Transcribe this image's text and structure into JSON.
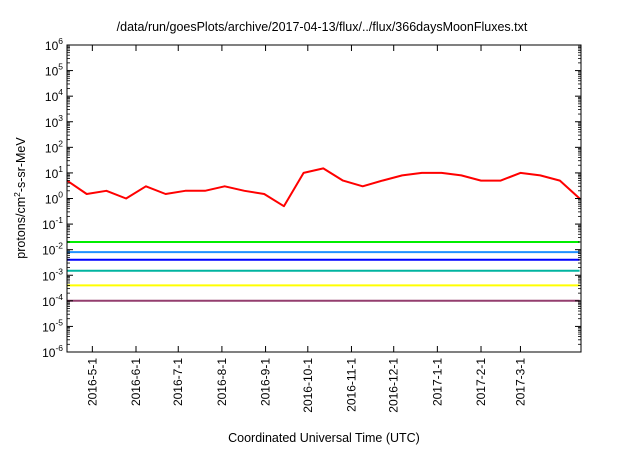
{
  "chart_data": {
    "type": "line",
    "title": "/data/run/goesPlots/archive/2017-04-13/flux/../flux/366daysMoonFluxes.txt",
    "xlabel": "Coordinated Universal Time (UTC)",
    "ylabel": "protons/cm²-s-sr-MeV",
    "ylabel_parts": {
      "before": "protons/cm",
      "sup": "2",
      "after": "-s-sr-MeV"
    },
    "yscale": "log",
    "ylim": [
      1e-06,
      1000000.0
    ],
    "y_ticks": [
      {
        "base": "10",
        "exp": "-6",
        "value": 1e-06
      },
      {
        "base": "10",
        "exp": "-5",
        "value": 1e-05
      },
      {
        "base": "10",
        "exp": "-4",
        "value": 0.0001
      },
      {
        "base": "10",
        "exp": "-3",
        "value": 0.001
      },
      {
        "base": "10",
        "exp": "-2",
        "value": 0.01
      },
      {
        "base": "10",
        "exp": "-1",
        "value": 0.1
      },
      {
        "base": "10",
        "exp": "0",
        "value": 1
      },
      {
        "base": "10",
        "exp": "1",
        "value": 10
      },
      {
        "base": "10",
        "exp": "2",
        "value": 100
      },
      {
        "base": "10",
        "exp": "3",
        "value": 1000
      },
      {
        "base": "10",
        "exp": "4",
        "value": 10000
      },
      {
        "base": "10",
        "exp": "5",
        "value": 100000
      },
      {
        "base": "10",
        "exp": "6",
        "value": 1000000
      }
    ],
    "xlim": [
      "2016-04-13",
      "2017-04-13"
    ],
    "x_ticks": [
      {
        "label": "2016-5-1",
        "date": "2016-05-01"
      },
      {
        "label": "2016-6-1",
        "date": "2016-06-01"
      },
      {
        "label": "2016-7-1",
        "date": "2016-07-01"
      },
      {
        "label": "2016-8-1",
        "date": "2016-08-01"
      },
      {
        "label": "2016-9-1",
        "date": "2016-09-01"
      },
      {
        "label": "2016-10-1",
        "date": "2016-10-01"
      },
      {
        "label": "2016-11-1",
        "date": "2016-11-01"
      },
      {
        "label": "2016-12-1",
        "date": "2016-12-01"
      },
      {
        "label": "2017-1-1",
        "date": "2017-01-01"
      },
      {
        "label": "2017-2-1",
        "date": "2017-02-01"
      },
      {
        "label": "2017-3-1",
        "date": "2017-03-01"
      }
    ],
    "grid": false,
    "legend": "none",
    "series": [
      {
        "color": "#ff0000",
        "values": [
          {
            "date": "2016-04-13",
            "y": 5
          },
          {
            "date": "2016-04-27",
            "y": 1.5
          },
          {
            "date": "2016-05-11",
            "y": 2
          },
          {
            "date": "2016-05-25",
            "y": 1
          },
          {
            "date": "2016-06-08",
            "y": 3
          },
          {
            "date": "2016-06-22",
            "y": 1.5
          },
          {
            "date": "2016-07-06",
            "y": 2
          },
          {
            "date": "2016-07-20",
            "y": 2
          },
          {
            "date": "2016-08-03",
            "y": 3
          },
          {
            "date": "2016-08-17",
            "y": 2
          },
          {
            "date": "2016-08-31",
            "y": 1.5
          },
          {
            "date": "2016-09-14",
            "y": 0.5
          },
          {
            "date": "2016-09-28",
            "y": 10
          },
          {
            "date": "2016-10-12",
            "y": 15
          },
          {
            "date": "2016-10-26",
            "y": 5
          },
          {
            "date": "2016-11-09",
            "y": 3
          },
          {
            "date": "2016-11-23",
            "y": 5
          },
          {
            "date": "2016-12-07",
            "y": 8
          },
          {
            "date": "2016-12-21",
            "y": 10
          },
          {
            "date": "2017-01-04",
            "y": 10
          },
          {
            "date": "2017-01-18",
            "y": 8
          },
          {
            "date": "2017-02-01",
            "y": 5
          },
          {
            "date": "2017-02-15",
            "y": 5
          },
          {
            "date": "2017-03-01",
            "y": 10
          },
          {
            "date": "2017-03-15",
            "y": 8
          },
          {
            "date": "2017-03-29",
            "y": 5
          },
          {
            "date": "2017-04-12",
            "y": 1
          }
        ]
      },
      {
        "color": "#00ee00",
        "values": [
          {
            "date": "2016-04-13",
            "y": 0.02
          },
          {
            "date": "2016-07-01",
            "y": 0.02
          },
          {
            "date": "2016-10-01",
            "y": 0.02
          },
          {
            "date": "2017-01-01",
            "y": 0.02
          },
          {
            "date": "2017-04-12",
            "y": 0.02
          }
        ]
      },
      {
        "color": "#2090ff",
        "values": [
          {
            "date": "2016-04-13",
            "y": 0.008
          },
          {
            "date": "2016-07-01",
            "y": 0.008
          },
          {
            "date": "2016-10-01",
            "y": 0.008
          },
          {
            "date": "2017-01-01",
            "y": 0.008
          },
          {
            "date": "2017-04-12",
            "y": 0.008
          }
        ]
      },
      {
        "color": "#0000ff",
        "values": [
          {
            "date": "2016-04-13",
            "y": 0.004
          },
          {
            "date": "2016-07-01",
            "y": 0.004
          },
          {
            "date": "2016-10-01",
            "y": 0.004
          },
          {
            "date": "2017-01-01",
            "y": 0.004
          },
          {
            "date": "2017-04-12",
            "y": 0.004
          }
        ]
      },
      {
        "color": "#00b4a0",
        "values": [
          {
            "date": "2016-04-13",
            "y": 0.0015
          },
          {
            "date": "2016-07-01",
            "y": 0.0015
          },
          {
            "date": "2016-10-01",
            "y": 0.0015
          },
          {
            "date": "2017-01-01",
            "y": 0.0015
          },
          {
            "date": "2017-04-12",
            "y": 0.0015
          }
        ]
      },
      {
        "color": "#ffff00",
        "values": [
          {
            "date": "2016-04-13",
            "y": 0.0004
          },
          {
            "date": "2016-07-01",
            "y": 0.0004
          },
          {
            "date": "2016-10-01",
            "y": 0.0004
          },
          {
            "date": "2017-01-01",
            "y": 0.0004
          },
          {
            "date": "2017-04-12",
            "y": 0.0004
          }
        ]
      },
      {
        "color": "#943e6e",
        "values": [
          {
            "date": "2016-04-13",
            "y": 0.0001
          },
          {
            "date": "2016-07-01",
            "y": 0.0001
          },
          {
            "date": "2016-10-01",
            "y": 0.0001
          },
          {
            "date": "2017-01-01",
            "y": 0.0001
          },
          {
            "date": "2017-04-12",
            "y": 0.0001
          }
        ]
      }
    ]
  }
}
